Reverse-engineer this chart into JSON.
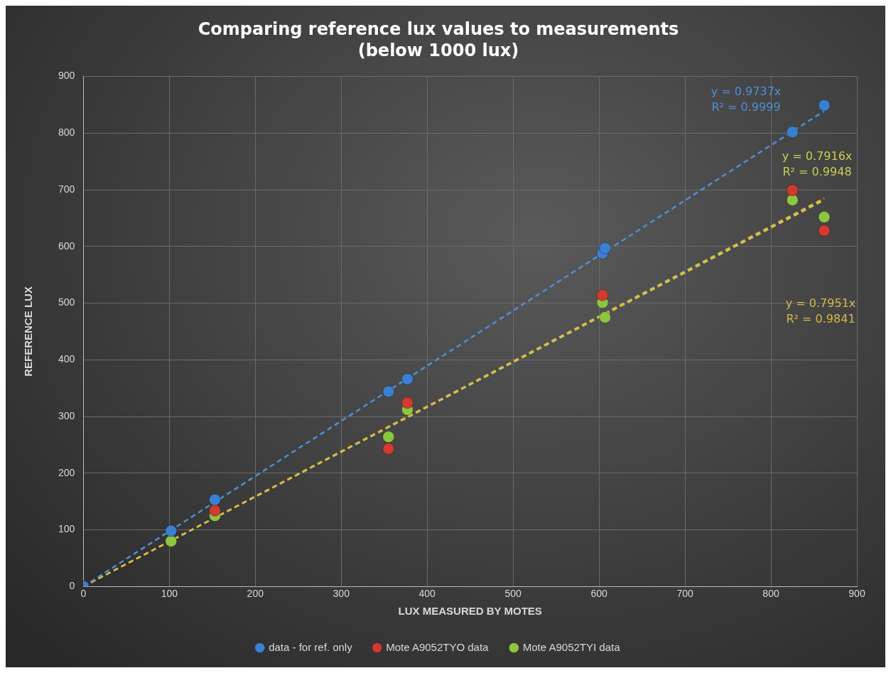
{
  "chart_data": {
    "type": "scatter",
    "title": "Comparing reference lux values to measurements",
    "subtitle": "(below 1000 lux)",
    "xlabel": "LUX MEASURED BY MOTES",
    "ylabel": "REFERENCE LUX",
    "xlim": [
      0,
      900
    ],
    "xticks": [
      0,
      100,
      200,
      300,
      400,
      500,
      600,
      700,
      800,
      900
    ],
    "ylim": [
      0,
      900
    ],
    "yticks": [
      0,
      100,
      200,
      300,
      400,
      500,
      600,
      700,
      800,
      900
    ],
    "grid": true,
    "legend": "bottom",
    "marker": "circle",
    "series": [
      {
        "name": "data - for ref. only",
        "color": "#3c7fd0",
        "x": [
          0,
          102,
          153,
          355,
          377,
          604,
          607,
          825,
          862
        ],
        "values": [
          0,
          98,
          153,
          344,
          366,
          588,
          597,
          802,
          849
        ]
      },
      {
        "name": "Mote A9052TYO data",
        "color": "#d03a30",
        "x": [
          0,
          102,
          153,
          355,
          377,
          604,
          607,
          825,
          862
        ],
        "values": [
          0,
          null,
          134,
          243,
          324,
          514,
          null,
          699,
          628
        ]
      },
      {
        "name": "Mote A9052TYI data",
        "color": "#8cc63f",
        "x": [
          0,
          102,
          153,
          355,
          377,
          604,
          607,
          825,
          862
        ],
        "values": [
          0,
          80,
          125,
          264,
          312,
          501,
          475,
          682,
          652
        ]
      },
      {
        "type": "line",
        "color": "#4f8fd8",
        "line_style": "dashed",
        "marker": "none",
        "x": [
          0,
          862
        ],
        "values": [
          0,
          839
        ]
      },
      {
        "type": "line",
        "color": "#d8b848",
        "line_style": "dashed",
        "marker": "none",
        "x": [
          0,
          862
        ],
        "values": [
          0,
          685
        ]
      },
      {
        "type": "line",
        "color": "#c8d050",
        "line_style": "dashed",
        "marker": "none",
        "x": [
          0,
          862
        ],
        "values": [
          0,
          682
        ]
      }
    ],
    "annotations": [
      "y = 0.9737x\nR² = 0.9999",
      "y = 0.7951x\nR² = 0.9841",
      "y = 0.7916x\nR² = 0.9948"
    ]
  }
}
